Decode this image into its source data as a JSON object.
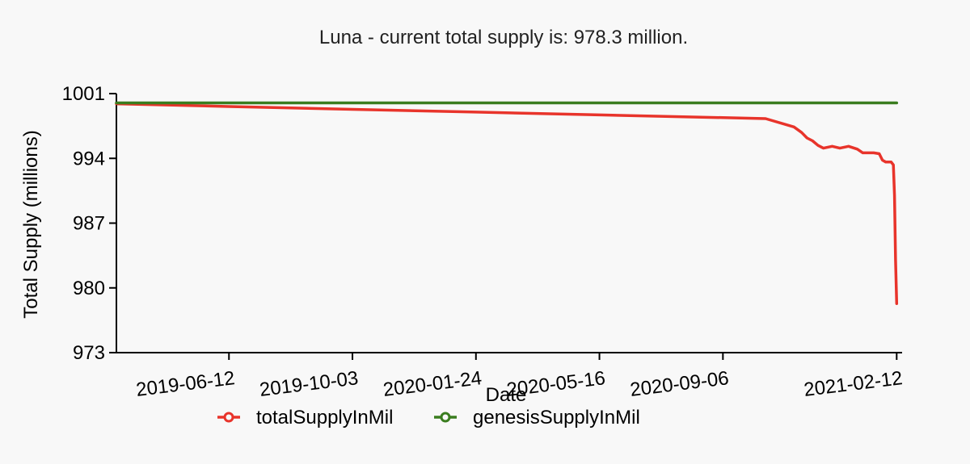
{
  "chart_data": {
    "type": "line",
    "title": "Luna - current total supply is: 978.3 million.",
    "xlabel": "Date",
    "ylabel": "Total Supply (millions)",
    "x_type": "date",
    "xlim": [
      "2019-03-01",
      "2021-02-14"
    ],
    "ylim": [
      973,
      1001
    ],
    "yticks": [
      973,
      980,
      987,
      994,
      1001
    ],
    "xticks": [
      "2019-06-12",
      "2019-10-03",
      "2020-01-24",
      "2020-05-16",
      "2020-09-06",
      "2021-02-12"
    ],
    "legend_position": "bottom",
    "series": [
      {
        "name": "totalSupplyInMil",
        "color": "#e8342b",
        "points": [
          [
            "2019-03-01",
            999.9
          ],
          [
            "2019-06-12",
            999.6
          ],
          [
            "2019-10-03",
            999.3
          ],
          [
            "2020-01-24",
            999.0
          ],
          [
            "2020-05-16",
            998.7
          ],
          [
            "2020-09-06",
            998.4
          ],
          [
            "2020-10-15",
            998.3
          ],
          [
            "2020-11-10",
            997.4
          ],
          [
            "2020-11-17",
            996.8
          ],
          [
            "2020-11-22",
            996.2
          ],
          [
            "2020-11-27",
            995.9
          ],
          [
            "2020-12-02",
            995.4
          ],
          [
            "2020-12-07",
            995.1
          ],
          [
            "2020-12-15",
            995.3
          ],
          [
            "2020-12-22",
            995.1
          ],
          [
            "2020-12-30",
            995.3
          ],
          [
            "2021-01-07",
            995.0
          ],
          [
            "2021-01-12",
            994.6
          ],
          [
            "2021-01-22",
            994.6
          ],
          [
            "2021-01-27",
            994.5
          ],
          [
            "2021-01-30",
            993.8
          ],
          [
            "2021-02-02",
            993.6
          ],
          [
            "2021-02-07",
            993.6
          ],
          [
            "2021-02-09",
            993.3
          ],
          [
            "2021-02-10",
            990.0
          ],
          [
            "2021-02-11",
            983.0
          ],
          [
            "2021-02-12",
            978.3
          ]
        ]
      },
      {
        "name": "genesisSupplyInMil",
        "color": "#3a7d1f",
        "points": [
          [
            "2019-03-01",
            1000.0
          ],
          [
            "2021-02-12",
            1000.0
          ]
        ]
      }
    ]
  }
}
